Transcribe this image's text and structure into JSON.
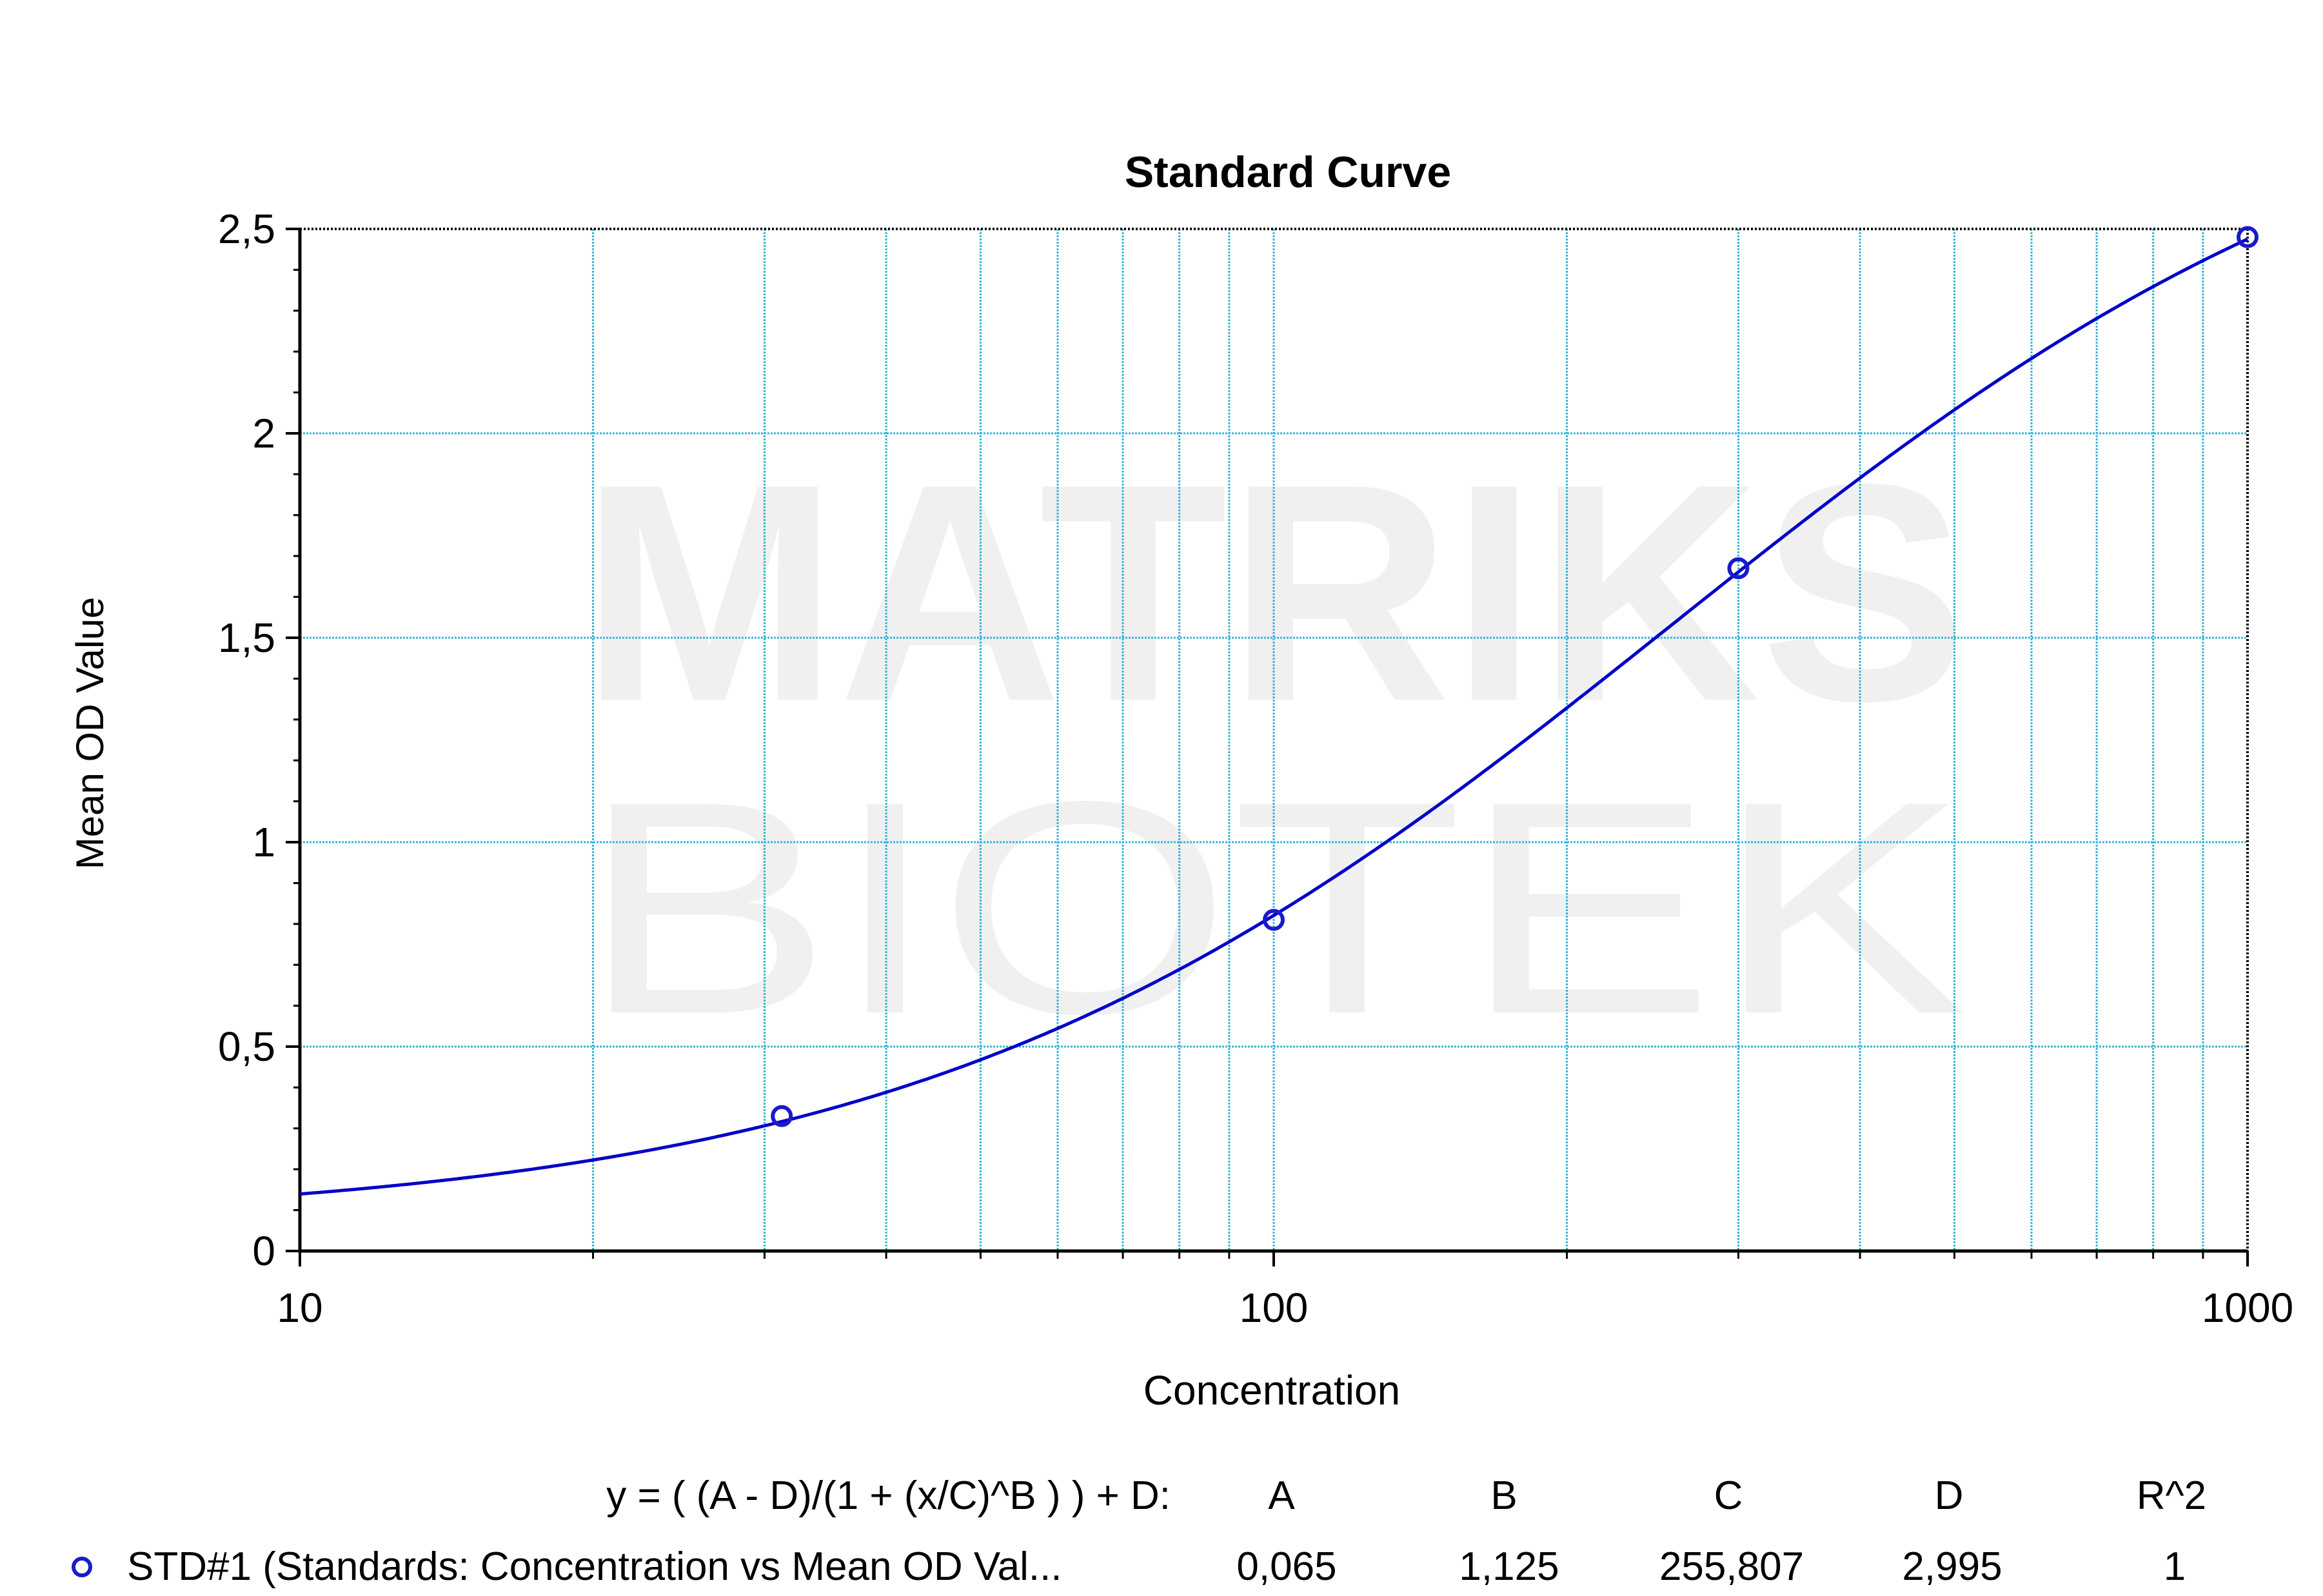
{
  "chart_data": {
    "type": "scatter",
    "title": "Standard Curve",
    "xlabel": "Concentration",
    "ylabel": "Mean OD Value",
    "x_scale": "log",
    "xlim": [
      10,
      1000
    ],
    "ylim": [
      0,
      2.5
    ],
    "x_ticks": [
      "10",
      "100",
      "1000"
    ],
    "y_ticks": [
      "0",
      "0,5",
      "1",
      "1,5",
      "2",
      "2,5"
    ],
    "grid": true,
    "series": [
      {
        "name": "STD#1 (Standards: Concentration vs Mean OD Val...",
        "color": "#0000c8",
        "marker": "circle",
        "points": [
          {
            "x": 31.25,
            "y": 0.33
          },
          {
            "x": 100,
            "y": 0.81
          },
          {
            "x": 300,
            "y": 1.67
          },
          {
            "x": 1000,
            "y": 2.48
          }
        ]
      }
    ],
    "fit": {
      "equation": "y = ( (A - D)/(1 + (x/C)^B ) ) + D:",
      "model": "4PL",
      "A": 0.065,
      "B": 1.125,
      "C": 255.807,
      "D": 2.995,
      "color": "#0000c8"
    },
    "fit_table": {
      "headers": [
        "A",
        "B",
        "C",
        "D",
        "R^2"
      ],
      "values": [
        "0,065",
        "1,125",
        "255,807",
        "2,995",
        "1"
      ]
    }
  },
  "watermark": {
    "line1": "MATRIKS",
    "line2": "BIOTEK"
  },
  "colors": {
    "grid": "#33b5d9",
    "curve": "#0000c8",
    "marker": "#1a1acc",
    "watermark": "#f0f0f0"
  }
}
